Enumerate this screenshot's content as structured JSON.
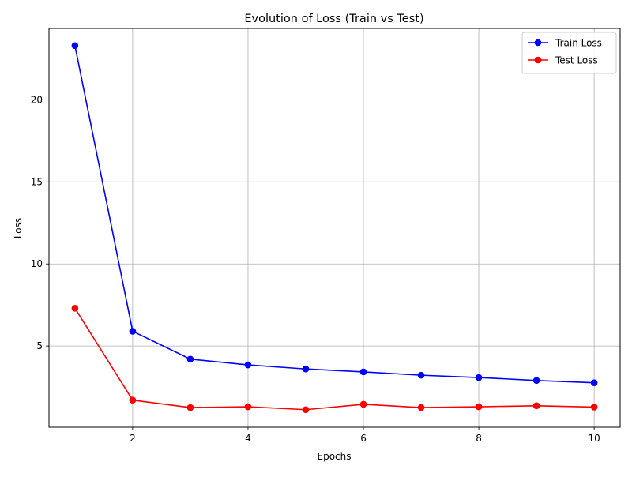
{
  "chart_data": {
    "type": "line",
    "title": "Evolution of Loss (Train vs Test)",
    "xlabel": "Epochs",
    "ylabel": "Loss",
    "x": [
      1,
      2,
      3,
      4,
      5,
      6,
      7,
      8,
      9,
      10
    ],
    "xlim": [
      0.55,
      10.45
    ],
    "ylim": [
      0.05,
      24.35
    ],
    "xticks": [
      2,
      4,
      6,
      8,
      10
    ],
    "yticks": [
      5,
      10,
      15,
      20
    ],
    "grid": true,
    "legend_position": "top-right",
    "series": [
      {
        "name": "Train Loss",
        "color": "#0000ff",
        "marker": "circle",
        "values": [
          23.3,
          5.9,
          4.2,
          3.85,
          3.6,
          3.42,
          3.22,
          3.08,
          2.9,
          2.76
        ]
      },
      {
        "name": "Test Loss",
        "color": "#ff0000",
        "marker": "circle",
        "values": [
          7.3,
          1.7,
          1.25,
          1.3,
          1.12,
          1.45,
          1.25,
          1.3,
          1.36,
          1.28
        ]
      }
    ]
  }
}
